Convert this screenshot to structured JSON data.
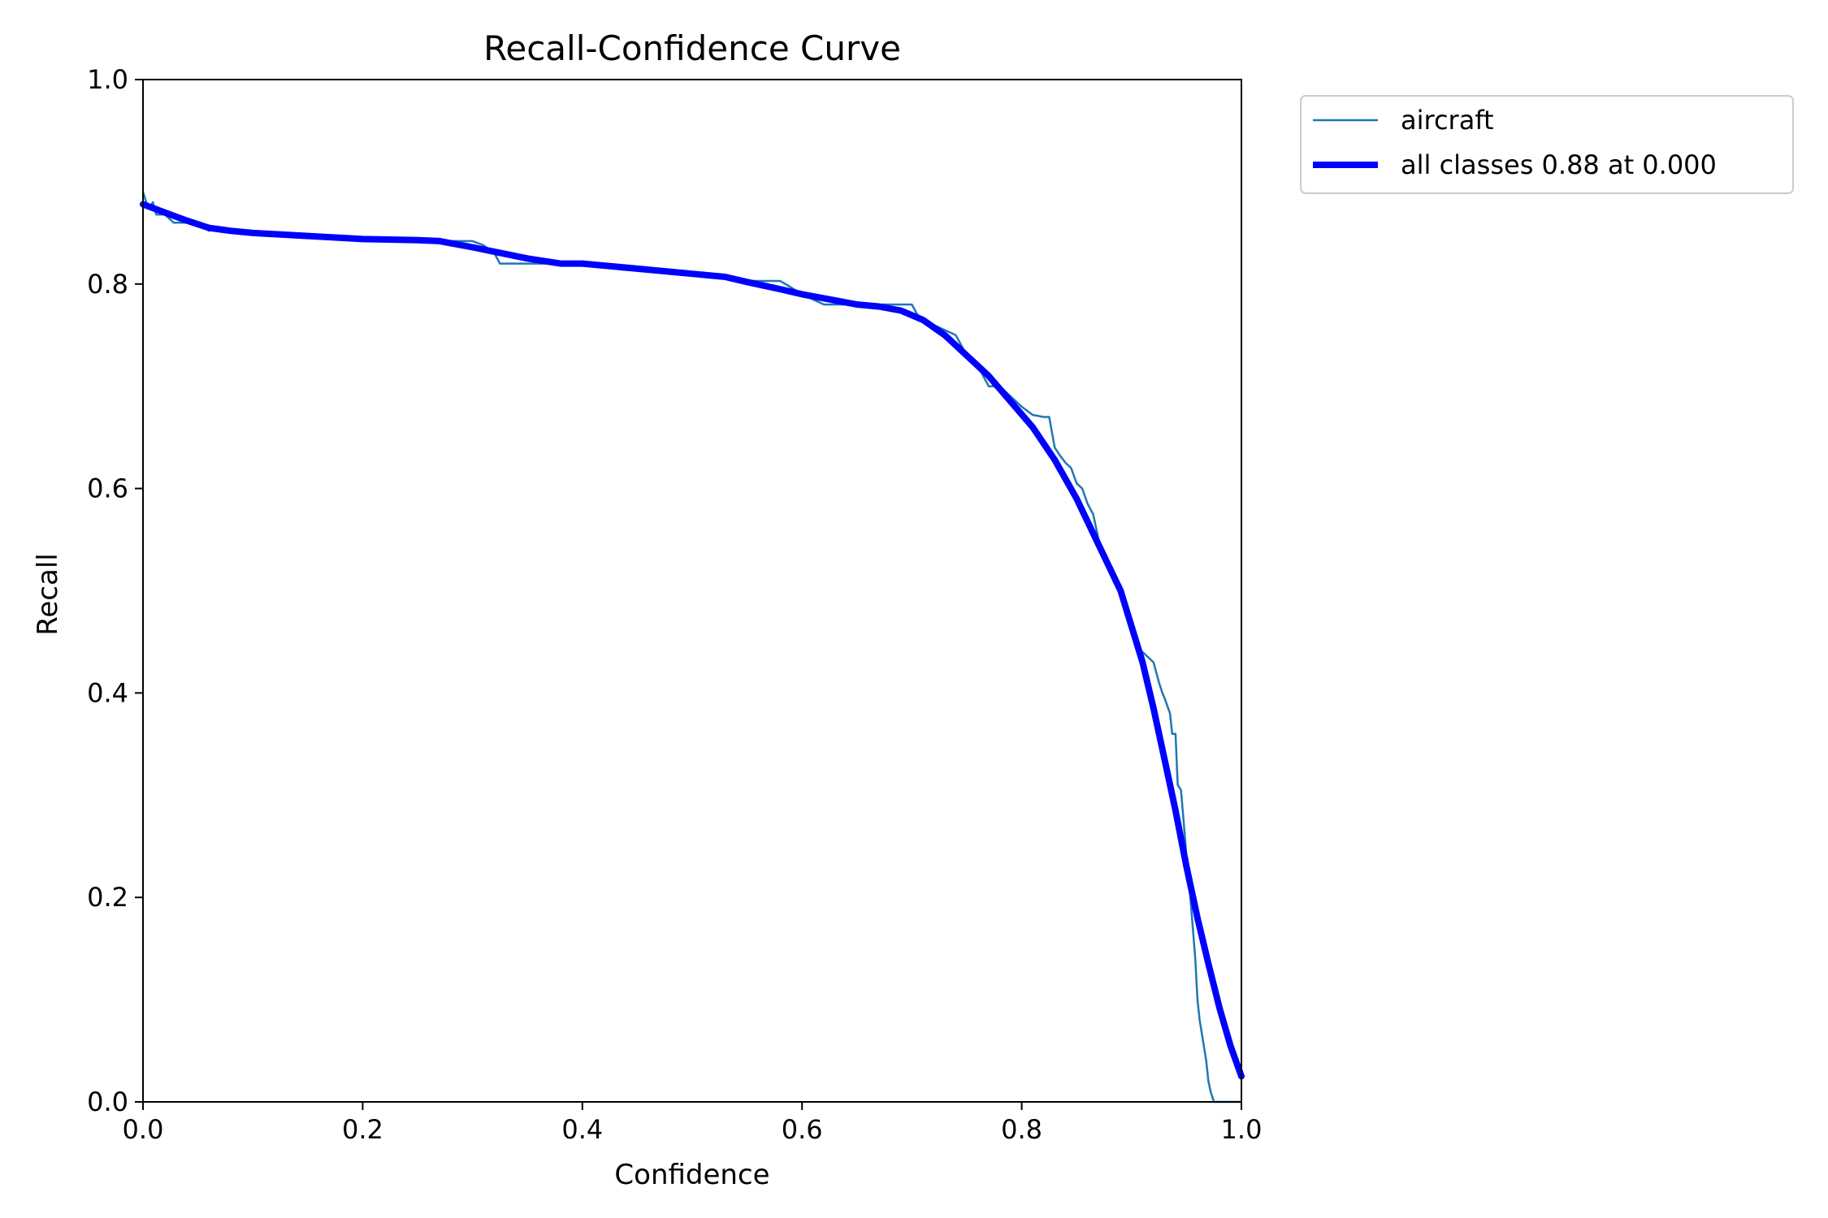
{
  "colors": {
    "background": "#ffffff",
    "axis": "#000000",
    "series_class": "#1f77b4",
    "series_all": "#0000ff"
  },
  "chart_data": {
    "type": "line",
    "title": "Recall-Confidence Curve",
    "xlabel": "Confidence",
    "ylabel": "Recall",
    "xlim": [
      0.0,
      1.0
    ],
    "ylim": [
      0.0,
      1.0
    ],
    "xticks": [
      "0.0",
      "0.2",
      "0.4",
      "0.6",
      "0.8",
      "1.0"
    ],
    "yticks": [
      "0.0",
      "0.2",
      "0.4",
      "0.6",
      "0.8",
      "1.0"
    ],
    "grid": false,
    "legend_position": "outside top-right",
    "series": [
      {
        "name": "aircraft",
        "color": "#1f77b4",
        "x": [
          0.0,
          0.003,
          0.006,
          0.009,
          0.012,
          0.02,
          0.028,
          0.035,
          0.05,
          0.06,
          0.065,
          0.07,
          0.1,
          0.15,
          0.2,
          0.25,
          0.27,
          0.3,
          0.31,
          0.32,
          0.325,
          0.33,
          0.35,
          0.37,
          0.4,
          0.44,
          0.45,
          0.5,
          0.515,
          0.52,
          0.54,
          0.55,
          0.56,
          0.58,
          0.585,
          0.6,
          0.61,
          0.62,
          0.63,
          0.66,
          0.7,
          0.705,
          0.71,
          0.72,
          0.74,
          0.75,
          0.76,
          0.77,
          0.775,
          0.78,
          0.79,
          0.8,
          0.81,
          0.82,
          0.825,
          0.83,
          0.835,
          0.84,
          0.845,
          0.85,
          0.855,
          0.86,
          0.865,
          0.87,
          0.88,
          0.89,
          0.9,
          0.905,
          0.91,
          0.915,
          0.92,
          0.925,
          0.928,
          0.93,
          0.935,
          0.937,
          0.94,
          0.942,
          0.945,
          0.947,
          0.95,
          0.952,
          0.955,
          0.958,
          0.96,
          0.962,
          0.965,
          0.968,
          0.97,
          0.972,
          0.975,
          0.98,
          0.99,
          1.0
        ],
        "y": [
          0.89,
          0.88,
          0.875,
          0.88,
          0.868,
          0.868,
          0.86,
          0.86,
          0.86,
          0.852,
          0.855,
          0.853,
          0.85,
          0.847,
          0.843,
          0.843,
          0.842,
          0.842,
          0.838,
          0.83,
          0.82,
          0.82,
          0.82,
          0.82,
          0.818,
          0.817,
          0.815,
          0.81,
          0.808,
          0.807,
          0.805,
          0.803,
          0.803,
          0.803,
          0.8,
          0.79,
          0.785,
          0.78,
          0.78,
          0.78,
          0.78,
          0.77,
          0.765,
          0.76,
          0.75,
          0.73,
          0.72,
          0.7,
          0.7,
          0.7,
          0.69,
          0.68,
          0.672,
          0.67,
          0.67,
          0.64,
          0.632,
          0.625,
          0.62,
          0.605,
          0.6,
          0.585,
          0.575,
          0.55,
          0.52,
          0.5,
          0.46,
          0.445,
          0.44,
          0.435,
          0.43,
          0.41,
          0.4,
          0.395,
          0.38,
          0.36,
          0.36,
          0.31,
          0.305,
          0.28,
          0.24,
          0.22,
          0.18,
          0.14,
          0.1,
          0.08,
          0.06,
          0.04,
          0.02,
          0.01,
          0.0,
          0.0,
          0.0,
          0.0
        ]
      },
      {
        "name": "all classes 0.88 at 0.000",
        "color": "#0000ff",
        "x": [
          0.0,
          0.02,
          0.04,
          0.06,
          0.08,
          0.1,
          0.15,
          0.2,
          0.25,
          0.27,
          0.3,
          0.35,
          0.38,
          0.4,
          0.45,
          0.5,
          0.53,
          0.55,
          0.58,
          0.6,
          0.63,
          0.65,
          0.67,
          0.69,
          0.71,
          0.73,
          0.75,
          0.77,
          0.79,
          0.81,
          0.83,
          0.85,
          0.87,
          0.89,
          0.9,
          0.91,
          0.92,
          0.93,
          0.94,
          0.95,
          0.96,
          0.97,
          0.98,
          0.99,
          1.0
        ],
        "y": [
          0.878,
          0.87,
          0.862,
          0.855,
          0.852,
          0.85,
          0.847,
          0.844,
          0.843,
          0.842,
          0.836,
          0.825,
          0.82,
          0.82,
          0.815,
          0.81,
          0.807,
          0.802,
          0.795,
          0.79,
          0.784,
          0.78,
          0.778,
          0.774,
          0.765,
          0.75,
          0.73,
          0.71,
          0.685,
          0.66,
          0.628,
          0.59,
          0.545,
          0.5,
          0.465,
          0.43,
          0.385,
          0.335,
          0.285,
          0.23,
          0.18,
          0.135,
          0.092,
          0.055,
          0.025
        ]
      }
    ]
  }
}
